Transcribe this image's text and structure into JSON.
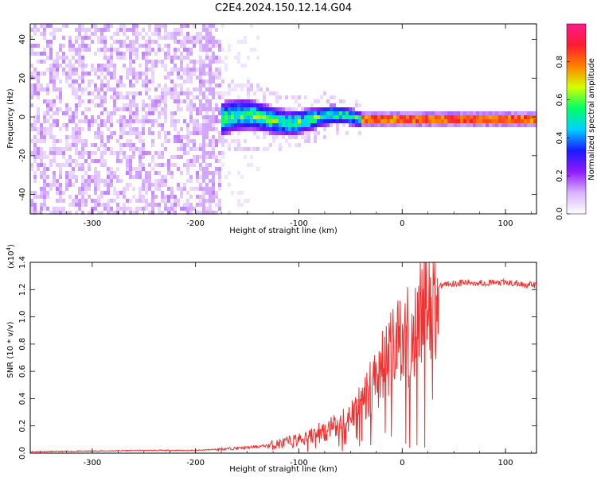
{
  "figure_title": "C2E4.2024.150.12.14.G04",
  "chart_data": [
    {
      "type": "heatmap",
      "title": "",
      "xlabel": "Height of straight line (km)",
      "ylabel": "Frequency (Hz)",
      "xlim": [
        -360,
        130
      ],
      "ylim": [
        -50,
        48
      ],
      "xticks": [
        -300,
        -200,
        -100,
        0,
        100
      ],
      "yticks": [
        -40,
        -20,
        0,
        20,
        40
      ],
      "colorbar": {
        "label": "Normalized spectral amplitude",
        "range": [
          0,
          1
        ],
        "ticks": [
          "0.0",
          "0.2",
          "0.4",
          "0.6",
          "0.8"
        ],
        "tick_values": [
          0.0,
          0.2,
          0.4,
          0.6,
          0.8
        ],
        "colors": [
          "#ffffff",
          "#d9b3ff",
          "#8f1aff",
          "#1a1aff",
          "#00d0ff",
          "#00ff66",
          "#d6ff00",
          "#ff8000",
          "#ff1a33",
          "#ff1a8c"
        ]
      },
      "regions": [
        {
          "x_range": [
            -360,
            -178
          ],
          "freq_range": [
            -50,
            48
          ],
          "description_level": 0.15
        },
        {
          "x_range": [
            -178,
            -40
          ],
          "freq_center": 0,
          "freq_halfwidth": 9,
          "level": 0.45
        },
        {
          "x_range": [
            -40,
            130
          ],
          "freq_center": 0,
          "freq_halfwidth": 2,
          "level": 0.85
        }
      ]
    },
    {
      "type": "line",
      "title": "",
      "xlabel": "Height of straight line (km)",
      "ylabel": "SNR (10 * v/v)",
      "y_multiplier": "(x10",
      "y_multiplier_exp": "4",
      "y_multiplier_close": ")",
      "xlim": [
        -360,
        130
      ],
      "ylim": [
        0,
        1.4
      ],
      "xticks": [
        -300,
        -200,
        -100,
        0,
        100
      ],
      "yticks": [
        "0.0",
        "0.2",
        "0.4",
        "0.6",
        "0.8",
        "1.0",
        "1.2",
        "1.4"
      ],
      "ytick_values": [
        0.0,
        0.2,
        0.4,
        0.6,
        0.8,
        1.0,
        1.2,
        1.4
      ],
      "series": [
        {
          "color": "#ee3333",
          "x": [
            -360,
            -300,
            -250,
            -200,
            -175,
            -150,
            -125,
            -110,
            -100,
            -90,
            -80,
            -70,
            -60,
            -50,
            -40,
            -30,
            -20,
            -10,
            0,
            10,
            20,
            30,
            40,
            60,
            80,
            100,
            115,
            130
          ],
          "y": [
            0.01,
            0.015,
            0.02,
            0.02,
            0.03,
            0.04,
            0.06,
            0.08,
            0.1,
            0.12,
            0.15,
            0.18,
            0.2,
            0.27,
            0.38,
            0.5,
            0.62,
            0.72,
            0.8,
            0.92,
            1.06,
            1.17,
            1.24,
            1.25,
            1.25,
            1.25,
            1.24,
            1.23
          ]
        }
      ]
    }
  ]
}
